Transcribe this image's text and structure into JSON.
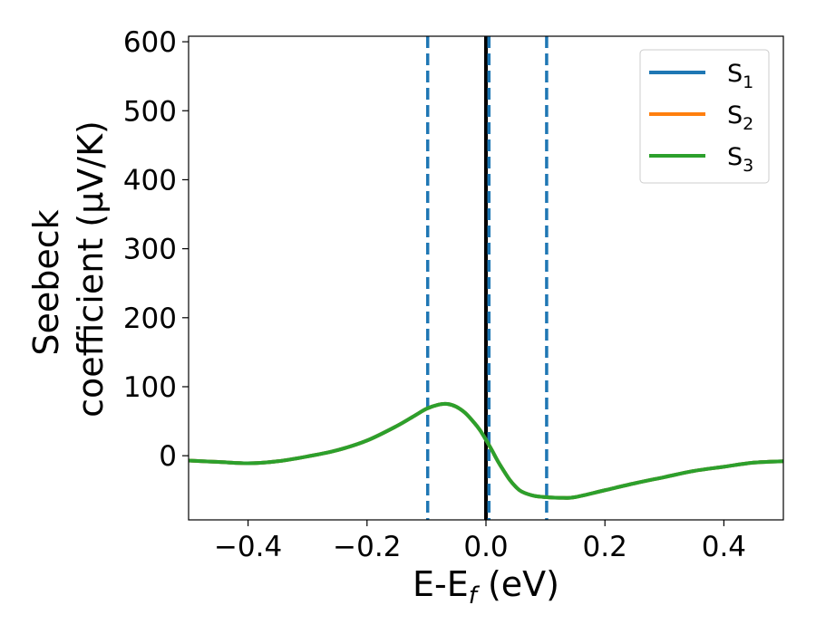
{
  "chart_data": {
    "type": "line",
    "xlabel": {
      "main": "E-E",
      "sub": "f",
      "rest": " (eV)"
    },
    "ylabel": {
      "line1": "Seebeck",
      "line2": "coefficient  (μV/K)"
    },
    "xlim": [
      -0.5,
      0.5
    ],
    "ylim": [
      -93,
      608
    ],
    "xticks": [
      -0.4,
      -0.2,
      0.0,
      0.2,
      0.4
    ],
    "xtick_labels": [
      "−0.4",
      "−0.2",
      "0.0",
      "0.2",
      "0.4"
    ],
    "yticks": [
      0,
      100,
      200,
      300,
      400,
      500,
      600
    ],
    "ytick_labels": [
      "0",
      "100",
      "200",
      "300",
      "400",
      "500",
      "600"
    ],
    "grid": false,
    "legend_position": "top-right",
    "series": [
      {
        "name": "S1",
        "label_main": "S",
        "label_sub": "1",
        "color": "#1f77b4",
        "x": [
          -0.5,
          -0.45,
          -0.4,
          -0.35,
          -0.3,
          -0.25,
          -0.2,
          -0.15,
          -0.12,
          -0.1,
          -0.08,
          -0.065,
          -0.05,
          -0.035,
          -0.02,
          -0.01,
          0.0,
          0.01,
          0.02,
          0.03,
          0.04,
          0.05,
          0.06,
          0.08,
          0.1,
          0.13,
          0.15,
          0.2,
          0.25,
          0.3,
          0.35,
          0.4,
          0.45,
          0.5
        ],
        "y": [
          -7,
          -9,
          -11,
          -8,
          -1,
          8,
          22,
          43,
          58,
          68,
          74,
          75,
          71,
          62,
          48,
          37,
          23,
          8,
          -8,
          -22,
          -35,
          -45,
          -52,
          -58,
          -60,
          -61,
          -60,
          -50,
          -40,
          -31,
          -22,
          -16,
          -10,
          -8
        ]
      },
      {
        "name": "S2",
        "label_main": "S",
        "label_sub": "2",
        "color": "#ff7f0e",
        "x": [
          -0.5,
          -0.45,
          -0.4,
          -0.35,
          -0.3,
          -0.25,
          -0.2,
          -0.15,
          -0.12,
          -0.1,
          -0.08,
          -0.065,
          -0.05,
          -0.035,
          -0.02,
          -0.01,
          0.0,
          0.01,
          0.02,
          0.03,
          0.04,
          0.05,
          0.06,
          0.08,
          0.1,
          0.13,
          0.15,
          0.2,
          0.25,
          0.3,
          0.35,
          0.4,
          0.45,
          0.5
        ],
        "y": [
          -7,
          -9,
          -11,
          -8,
          -1,
          8,
          22,
          43,
          58,
          68,
          74,
          75,
          71,
          62,
          48,
          37,
          23,
          8,
          -8,
          -22,
          -35,
          -45,
          -52,
          -58,
          -60,
          -61,
          -60,
          -50,
          -40,
          -31,
          -22,
          -16,
          -10,
          -8
        ]
      },
      {
        "name": "S3",
        "label_main": "S",
        "label_sub": "3",
        "color": "#2ca02c",
        "x": [
          -0.5,
          -0.45,
          -0.4,
          -0.35,
          -0.3,
          -0.25,
          -0.2,
          -0.15,
          -0.12,
          -0.1,
          -0.08,
          -0.065,
          -0.05,
          -0.035,
          -0.02,
          -0.01,
          0.0,
          0.01,
          0.02,
          0.03,
          0.04,
          0.05,
          0.06,
          0.08,
          0.1,
          0.13,
          0.15,
          0.2,
          0.25,
          0.3,
          0.35,
          0.4,
          0.45,
          0.5
        ],
        "y": [
          -7,
          -9,
          -11,
          -8,
          -1,
          8,
          22,
          43,
          58,
          68,
          74,
          75,
          71,
          62,
          48,
          37,
          23,
          8,
          -8,
          -22,
          -35,
          -45,
          -52,
          -58,
          -60,
          -61,
          -60,
          -50,
          -40,
          -31,
          -22,
          -16,
          -10,
          -8
        ]
      }
    ],
    "vlines": [
      {
        "x": -0.098,
        "style": "dashed",
        "color": "#1f77b4"
      },
      {
        "x": 0.0,
        "style": "solid",
        "color": "#000000"
      },
      {
        "x": 0.005,
        "style": "dashed",
        "color": "#1f77b4"
      },
      {
        "x": 0.102,
        "style": "dashed",
        "color": "#1f77b4"
      }
    ]
  }
}
